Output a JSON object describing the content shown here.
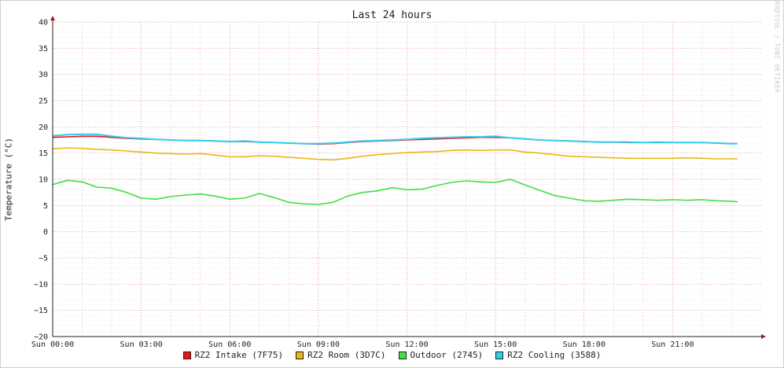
{
  "chart_data": {
    "type": "line",
    "title": "Last 24 hours",
    "xlabel": "",
    "ylabel": "Temperature (°C)",
    "watermark": "RRDTOOL / TOBI OETIKER",
    "xlim": [
      0,
      24
    ],
    "ylim": [
      -20,
      40
    ],
    "x_tick_hours": [
      0,
      3,
      6,
      9,
      12,
      15,
      18,
      21
    ],
    "x_tick_labels": [
      "Sun 00:00",
      "Sun 03:00",
      "Sun 06:00",
      "Sun 09:00",
      "Sun 12:00",
      "Sun 15:00",
      "Sun 18:00",
      "Sun 21:00"
    ],
    "y_ticks": [
      -20,
      -15,
      -10,
      -5,
      0,
      5,
      10,
      15,
      20,
      25,
      30,
      35,
      40
    ],
    "y_tick_labels": [
      "−20",
      "−15",
      "−10",
      "−5",
      "0",
      "5",
      "10",
      "15",
      "20",
      "25",
      "30",
      "35",
      "40"
    ],
    "grid": true,
    "legend_position": "bottom",
    "x": [
      0,
      0.5,
      1,
      1.5,
      2,
      2.5,
      3,
      3.5,
      4,
      4.5,
      5,
      5.5,
      6,
      6.5,
      7,
      7.5,
      8,
      8.5,
      9,
      9.5,
      10,
      10.5,
      11,
      11.5,
      12,
      12.5,
      13,
      13.5,
      14,
      14.5,
      15,
      15.5,
      16,
      16.5,
      17,
      17.5,
      18,
      18.5,
      19,
      19.5,
      20,
      20.5,
      21,
      21.5,
      22,
      22.5,
      23,
      23.2
    ],
    "series": [
      {
        "name": "RZ2 Intake (7F75)",
        "color": "#ee1111",
        "values": [
          18.0,
          18.1,
          18.2,
          18.2,
          18.0,
          17.8,
          17.7,
          17.6,
          17.5,
          17.4,
          17.4,
          17.3,
          17.2,
          17.2,
          17.1,
          17.0,
          16.9,
          16.8,
          16.7,
          16.8,
          17.0,
          17.2,
          17.3,
          17.4,
          17.5,
          17.6,
          17.7,
          17.8,
          17.9,
          18.0,
          18.0,
          17.9,
          17.7,
          17.5,
          17.4,
          17.3,
          17.2,
          17.1,
          17.1,
          17.0,
          17.0,
          17.0,
          17.0,
          17.0,
          17.0,
          16.9,
          16.8,
          16.8
        ]
      },
      {
        "name": "RZ2 Room (3D7C)",
        "color": "#e8b818",
        "values": [
          15.8,
          16.0,
          15.9,
          15.7,
          15.6,
          15.4,
          15.2,
          15.0,
          14.9,
          14.8,
          14.9,
          14.6,
          14.3,
          14.3,
          14.5,
          14.4,
          14.2,
          14.0,
          13.8,
          13.7,
          14.0,
          14.4,
          14.7,
          14.9,
          15.1,
          15.2,
          15.3,
          15.5,
          15.6,
          15.5,
          15.6,
          15.6,
          15.2,
          15.0,
          14.7,
          14.4,
          14.3,
          14.2,
          14.1,
          14.0,
          14.0,
          14.0,
          14.0,
          14.1,
          14.0,
          13.9,
          13.9,
          13.9
        ]
      },
      {
        "name": "Outdoor (2745)",
        "color": "#44dd44",
        "values": [
          9.0,
          9.8,
          9.5,
          8.5,
          8.3,
          7.5,
          6.4,
          6.2,
          6.7,
          7.0,
          7.2,
          6.8,
          6.2,
          6.4,
          7.3,
          6.5,
          5.6,
          5.3,
          5.2,
          5.6,
          6.8,
          7.5,
          7.8,
          8.4,
          8.0,
          8.1,
          8.8,
          9.4,
          9.7,
          9.5,
          9.4,
          10.0,
          8.9,
          7.9,
          6.9,
          6.4,
          5.9,
          5.8,
          6.0,
          6.2,
          6.1,
          6.0,
          6.1,
          6.0,
          6.1,
          5.9,
          5.8,
          5.7
        ]
      },
      {
        "name": "RZ2 Cooling (3588)",
        "color": "#33ccee",
        "values": [
          18.3,
          18.5,
          18.6,
          18.6,
          18.2,
          17.9,
          17.8,
          17.6,
          17.5,
          17.4,
          17.4,
          17.3,
          17.2,
          17.3,
          17.1,
          17.0,
          16.9,
          16.8,
          16.8,
          16.9,
          17.1,
          17.3,
          17.4,
          17.5,
          17.6,
          17.8,
          17.9,
          18.0,
          18.1,
          18.1,
          18.2,
          17.9,
          17.7,
          17.5,
          17.4,
          17.3,
          17.2,
          17.1,
          17.1,
          17.1,
          17.0,
          17.1,
          17.0,
          17.0,
          17.0,
          16.9,
          16.8,
          16.8
        ]
      }
    ]
  }
}
